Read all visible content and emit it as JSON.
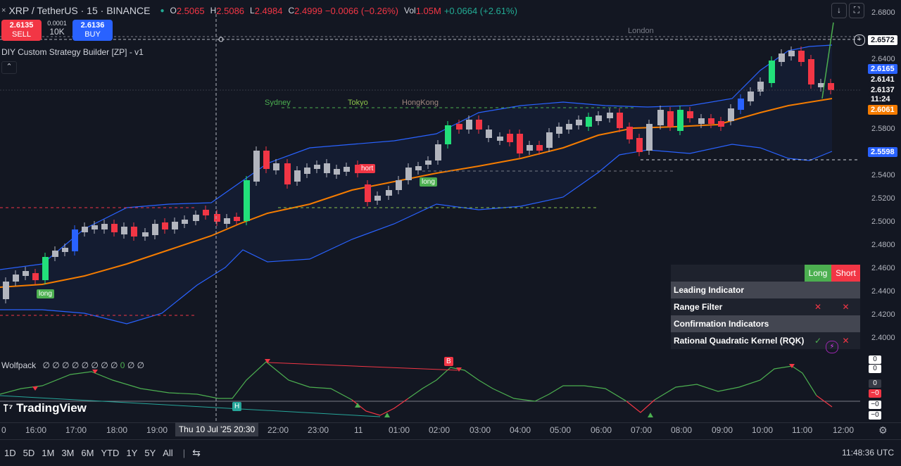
{
  "header": {
    "symbol": "XRP / TetherUS · 15 · BINANCE",
    "open_label": "O",
    "open": "2.5065",
    "high_label": "H",
    "high": "2.5086",
    "low_label": "L",
    "low": "2.4984",
    "close_label": "C",
    "close": "2.4999",
    "change": "−0.0066 (−0.26%)",
    "vol_label": "Vol",
    "vol": "1.05M",
    "vol_change": "+0.0664 (+2.61%)"
  },
  "trade": {
    "sell_price": "2.6135",
    "sell_label": "SELL",
    "spread": "0.0001",
    "qty": "10K",
    "buy_price": "2.6136",
    "buy_label": "BUY"
  },
  "indicator": {
    "title": "DIY Custom Strategy Builder [ZP] - v1",
    "collapse_icon": "chevron-up-icon"
  },
  "oscillator": {
    "title": "Wolfpack",
    "values": "∅ ∅ ∅ ∅ ∅ ∅ ∅ ∅",
    "values2": "0",
    "values3": "∅ ∅"
  },
  "sessions": {
    "london": "London",
    "sydney": "Sydney",
    "tokyo": "Tokyo",
    "hongkong": "HongKong"
  },
  "signals": {
    "long1": "long",
    "short1": "hort",
    "long2": "long",
    "b": "B",
    "h": "H"
  },
  "table": {
    "long_hdr": "Long",
    "short_hdr": "Short",
    "row1": "Leading Indicator",
    "row2": "Range Filter",
    "row2_long": "✕",
    "row2_short": "✕",
    "row3": "Confirmation Indicators",
    "row4": "Rational Quadratic Kernel (RQK)",
    "row4_long": "✓",
    "row4_short": "✕"
  },
  "price_axis": {
    "ticks": [
      "2.6800",
      "2.6400",
      "2.5800",
      "2.5400",
      "2.5200",
      "2.5000",
      "2.4800",
      "2.4600",
      "2.4400",
      "2.4200",
      "2.4000"
    ],
    "label_crosshair": "2.6572",
    "label_blue": "2.6165",
    "label_last": "2.6141",
    "label_close": "2.6137",
    "label_countdown": "11:24",
    "label_orange": "2.6061",
    "label_lower": "2.5598",
    "osc_labels": [
      "0",
      "0",
      "0",
      "−0",
      "−0",
      "−0"
    ]
  },
  "time_axis": {
    "ticks": [
      "0",
      "16:00",
      "17:00",
      "18:00",
      "19:00",
      "22:00",
      "23:00",
      "11",
      "01:00",
      "02:00",
      "03:00",
      "04:00",
      "05:00",
      "06:00",
      "07:00",
      "08:00",
      "09:00",
      "10:00",
      "11:00",
      "12:00"
    ],
    "crosshair": "Thu 10 Jul '25   20:30"
  },
  "bottom": {
    "ranges": [
      "1D",
      "5D",
      "1M",
      "3M",
      "6M",
      "YTD",
      "1Y",
      "5Y",
      "All"
    ],
    "clock": "11:48:36 UTC"
  },
  "logo": "TradingView",
  "colors": {
    "bg": "#131722",
    "up": "#089981",
    "down": "#f23645",
    "accent": "#2962ff",
    "orange": "#f57c00",
    "green": "#4caf50"
  }
}
